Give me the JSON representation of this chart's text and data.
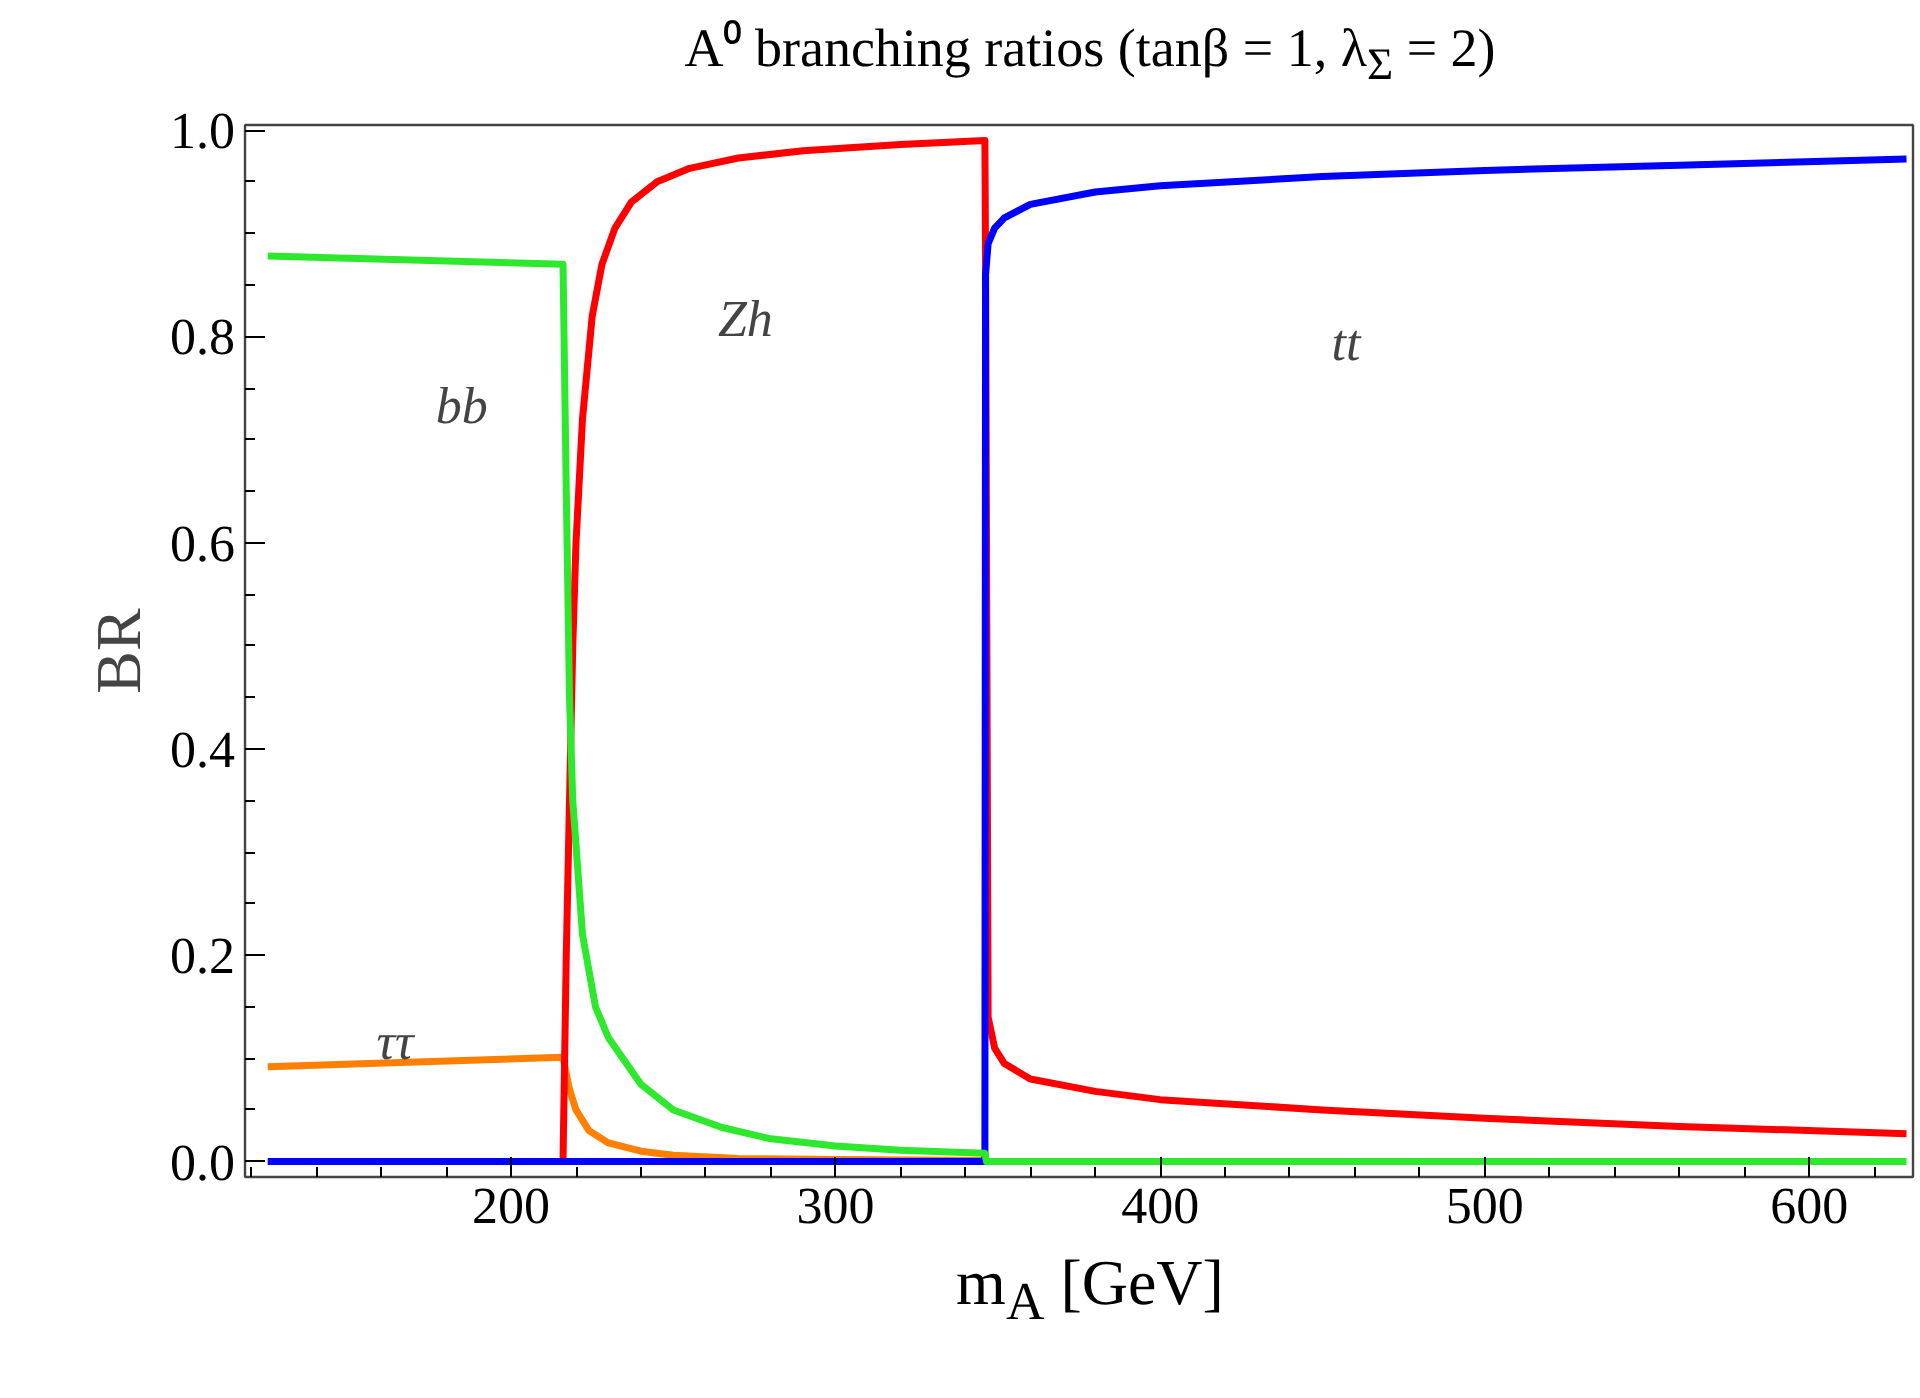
{
  "chart_data": {
    "type": "line",
    "title": "A⁰ branching ratios (tanβ = 1, λ$_{Σ}$ = 2)",
    "xlabel": "m$_{A}$ [GeV]",
    "ylabel": "BR",
    "xlim": [
      118,
      632
    ],
    "ylim": [
      -0.015,
      1.005
    ],
    "xticks": [
      200,
      300,
      400,
      500,
      600
    ],
    "yticks": [
      {
        "value": 0,
        "label": "0.0"
      },
      {
        "value": 0.2,
        "label": "0.2"
      },
      {
        "value": 0.4,
        "label": "0.4"
      },
      {
        "value": 0.6,
        "label": "0.6"
      },
      {
        "value": 0.8,
        "label": "0.8"
      },
      {
        "value": 1.0,
        "label": "1.0"
      }
    ],
    "grid": false,
    "marker": "none",
    "line_style": "solid",
    "series": [
      {
        "color": "#ff8000",
        "x": [
          125,
          216,
          218,
          220,
          224,
          230,
          240,
          250,
          270,
          300,
          346
        ],
        "values": [
          0.092,
          0.101,
          0.07,
          0.05,
          0.03,
          0.018,
          0.01,
          0.006,
          0.003,
          0.002,
          0.001
        ]
      },
      {
        "color": "#ff0000",
        "x": [
          216,
          217,
          218,
          219,
          220,
          222,
          225,
          228,
          232,
          237,
          245,
          255,
          270,
          290,
          320,
          346,
          346.2,
          347,
          349,
          352,
          360,
          380,
          400,
          450,
          500,
          560,
          630
        ],
        "values": [
          0.0,
          0.2,
          0.35,
          0.5,
          0.6,
          0.72,
          0.82,
          0.87,
          0.905,
          0.93,
          0.95,
          0.963,
          0.973,
          0.98,
          0.986,
          0.99,
          0.88,
          0.14,
          0.11,
          0.095,
          0.08,
          0.068,
          0.06,
          0.05,
          0.042,
          0.034,
          0.027
        ]
      },
      {
        "color": "#0000ff",
        "x": [
          125,
          346,
          346.2,
          347,
          349,
          352,
          360,
          380,
          400,
          450,
          500,
          560,
          630
        ],
        "values": [
          0.0,
          0.0,
          0.86,
          0.89,
          0.905,
          0.915,
          0.928,
          0.94,
          0.946,
          0.955,
          0.961,
          0.966,
          0.972
        ]
      },
      {
        "color": "#2ee82e",
        "x": [
          125,
          216,
          217,
          218,
          219,
          222,
          226,
          230,
          240,
          250,
          265,
          280,
          300,
          320,
          346,
          346.5,
          400,
          500,
          630
        ],
        "values": [
          0.878,
          0.87,
          0.65,
          0.45,
          0.35,
          0.22,
          0.15,
          0.12,
          0.075,
          0.05,
          0.033,
          0.022,
          0.015,
          0.011,
          0.008,
          0.0,
          0.0,
          0.0,
          0.0
        ]
      }
    ],
    "annotations": [
      "bb",
      "ττ",
      "Zh",
      "tt"
    ]
  }
}
